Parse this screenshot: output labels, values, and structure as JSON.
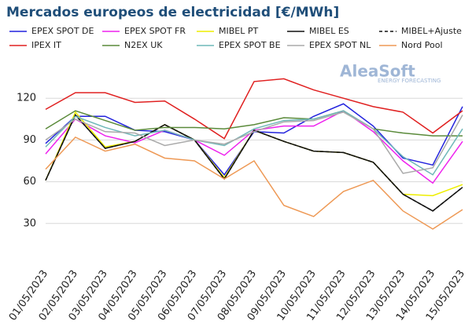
{
  "chart_data": {
    "type": "line",
    "title": "Mercados europeos de electricidad [€/MWh]",
    "watermark": {
      "name": "AleaSoft",
      "tagline": "ENERGY FORECASTING"
    },
    "categories": [
      "01/05/2023",
      "02/05/2023",
      "03/05/2023",
      "04/05/2023",
      "05/05/2023",
      "06/05/2023",
      "07/05/2023",
      "08/05/2023",
      "09/05/2023",
      "10/05/2023",
      "11/05/2023",
      "12/05/2023",
      "13/05/2023",
      "14/05/2023",
      "15/05/2023"
    ],
    "ylim": [
      0,
      150
    ],
    "yticks": [
      30,
      60,
      90,
      120
    ],
    "grid": true,
    "series": [
      {
        "name": "EPEX SPOT DE",
        "color": "#2222dd",
        "values": [
          87.5,
          107,
          107,
          97,
          96,
          90,
          65,
          96,
          95,
          107,
          116,
          100,
          77,
          72,
          114
        ]
      },
      {
        "name": "EPEX SPOT FR",
        "color": "#ee22ee",
        "values": [
          80,
          105,
          93,
          88,
          97,
          90,
          79,
          97,
          100,
          100,
          111,
          96,
          75,
          59,
          89
        ]
      },
      {
        "name": "MIBEL PT",
        "color": "#eeee00",
        "values": [
          61,
          110,
          85,
          89,
          101,
          90,
          63,
          97,
          89,
          82,
          81,
          74,
          51,
          50,
          58
        ]
      },
      {
        "name": "MIBEL ES",
        "color": "#111111",
        "values": [
          61,
          108,
          84,
          89,
          101,
          90,
          62,
          97,
          89,
          82,
          81,
          74,
          51,
          39,
          56
        ]
      },
      {
        "name": "MIBEL+Ajuste",
        "color": "#111111",
        "dash": true,
        "values": [
          61,
          108,
          84,
          89,
          101,
          90,
          62,
          97,
          89,
          82,
          81,
          74,
          51,
          39,
          56
        ]
      },
      {
        "name": "IPEX IT",
        "color": "#e02020",
        "values": [
          112,
          124,
          124,
          117,
          118,
          105,
          91,
          132,
          134,
          126,
          120,
          114,
          110,
          95,
          111
        ]
      },
      {
        "name": "N2EX UK",
        "color": "#5a8a3a",
        "values": [
          98,
          111,
          104,
          97,
          99,
          99,
          98,
          101,
          106,
          105,
          111,
          98,
          95,
          93,
          93
        ]
      },
      {
        "name": "EPEX SPOT BE",
        "color": "#6fb8b8",
        "values": [
          85,
          107,
          99,
          93,
          97,
          90,
          86,
          98,
          104,
          105,
          111,
          98,
          78,
          65,
          98
        ]
      },
      {
        "name": "EPEX SPOT NL",
        "color": "#aaaaaa",
        "values": [
          90,
          105,
          96,
          95,
          86,
          90,
          87,
          96,
          103,
          104,
          110,
          98,
          66,
          70,
          108
        ]
      },
      {
        "name": "Nord Pool",
        "color": "#ee9955",
        "values": [
          69,
          92,
          82,
          87,
          77,
          75,
          62,
          75,
          43,
          35,
          53,
          61,
          39,
          26,
          40
        ]
      }
    ]
  }
}
